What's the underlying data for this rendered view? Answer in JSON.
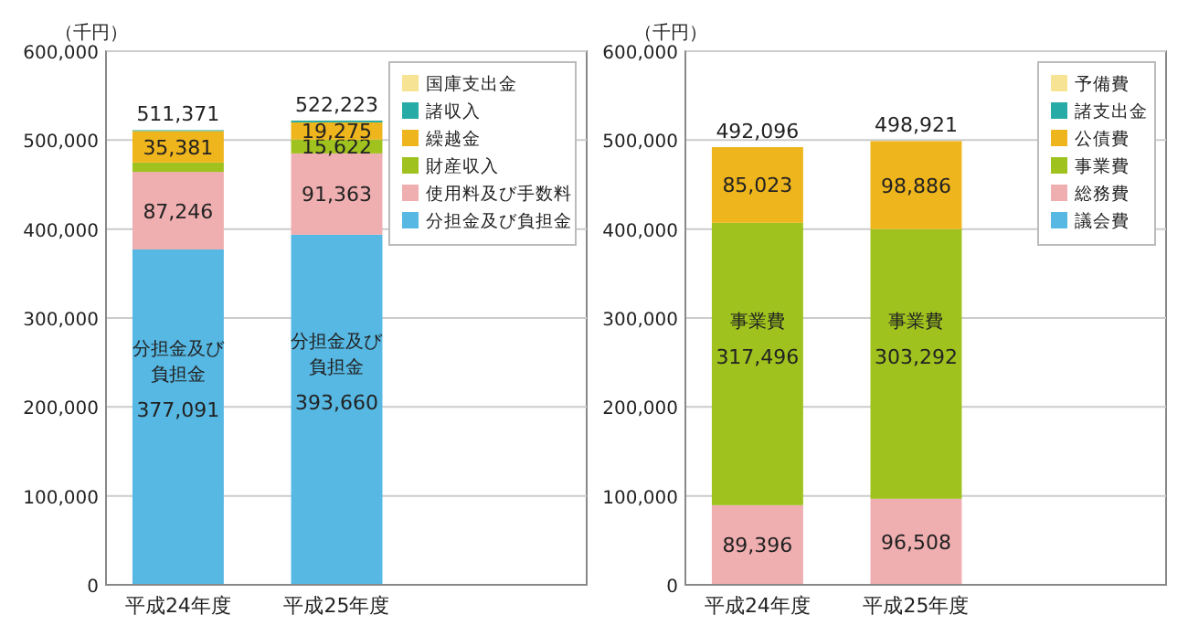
{
  "chart_data": [
    {
      "type": "bar",
      "stacked": true,
      "ylabel": "（千円）",
      "categories": [
        "平成24年度",
        "平成25年度"
      ],
      "ylim": [
        0,
        600000
      ],
      "yticks": [
        {
          "value": 0,
          "label": "0"
        },
        {
          "value": 100000,
          "label": "100,000"
        },
        {
          "value": 200000,
          "label": "200,000"
        },
        {
          "value": 300000,
          "label": "300,000"
        },
        {
          "value": 400000,
          "label": "400,000"
        },
        {
          "value": 500000,
          "label": "500,000"
        },
        {
          "value": 600000,
          "label": "600,000"
        }
      ],
      "grid": "y",
      "legend": "top right",
      "series": [
        {
          "name": "分担金及び負担金",
          "color": "#56b8e3",
          "values": [
            377091,
            393660
          ],
          "value_labels": [
            "377,091",
            "393,660"
          ]
        },
        {
          "name": "使用料及び手数料",
          "color": "#efaeb0",
          "values": [
            87246,
            91363
          ],
          "value_labels": [
            "87,246",
            "91,363"
          ]
        },
        {
          "name": "財産収入",
          "color": "#9fc21f",
          "values": [
            10500,
            15622
          ],
          "value_labels": [
            null,
            "15,622"
          ]
        },
        {
          "name": "繰越金",
          "color": "#efb51c",
          "values": [
            35381,
            19275
          ],
          "value_labels": [
            "35,381",
            "19,275"
          ]
        },
        {
          "name": "諸収入",
          "color": "#26aba6",
          "values": [
            1000,
            2000
          ],
          "value_labels": [
            null,
            null
          ]
        },
        {
          "name": "国庫支出金",
          "color": "#f7e394",
          "values": [
            153,
            303
          ],
          "value_labels": [
            null,
            null
          ]
        }
      ],
      "totals": [
        "511,371",
        "522,223"
      ],
      "annotations": [
        "分担金及び負担金",
        "分担金及び負担金"
      ]
    },
    {
      "type": "bar",
      "stacked": true,
      "ylabel": "（千円）",
      "categories": [
        "平成24年度",
        "平成25年度"
      ],
      "ylim": [
        0,
        600000
      ],
      "yticks": [
        {
          "value": 0,
          "label": "0"
        },
        {
          "value": 100000,
          "label": "100,000"
        },
        {
          "value": 200000,
          "label": "200,000"
        },
        {
          "value": 300000,
          "label": "300,000"
        },
        {
          "value": 400000,
          "label": "400,000"
        },
        {
          "value": 500000,
          "label": "500,000"
        },
        {
          "value": 600000,
          "label": "600,000"
        }
      ],
      "grid": "y",
      "legend": "top right",
      "series": [
        {
          "name": "議会費",
          "color": "#56b8e3",
          "values": [
            181,
            235
          ],
          "value_labels": [
            null,
            null
          ]
        },
        {
          "name": "総務費",
          "color": "#efaeb0",
          "values": [
            89396,
            96508
          ],
          "value_labels": [
            "89,396",
            "96,508"
          ]
        },
        {
          "name": "事業費",
          "color": "#9fc21f",
          "values": [
            317496,
            303292
          ],
          "value_labels": [
            "317,496",
            "303,292"
          ]
        },
        {
          "name": "公債費",
          "color": "#efb51c",
          "values": [
            85023,
            98886
          ],
          "value_labels": [
            "85,023",
            "98,886"
          ]
        },
        {
          "name": "諸支出金",
          "color": "#26aba6",
          "values": [
            0,
            0
          ],
          "value_labels": [
            null,
            null
          ]
        },
        {
          "name": "予備費",
          "color": "#f7e394",
          "values": [
            0,
            0
          ],
          "value_labels": [
            null,
            null
          ]
        }
      ],
      "totals": [
        "492,096",
        "498,921"
      ],
      "annotations": [
        "事業費",
        "事業費"
      ]
    }
  ]
}
